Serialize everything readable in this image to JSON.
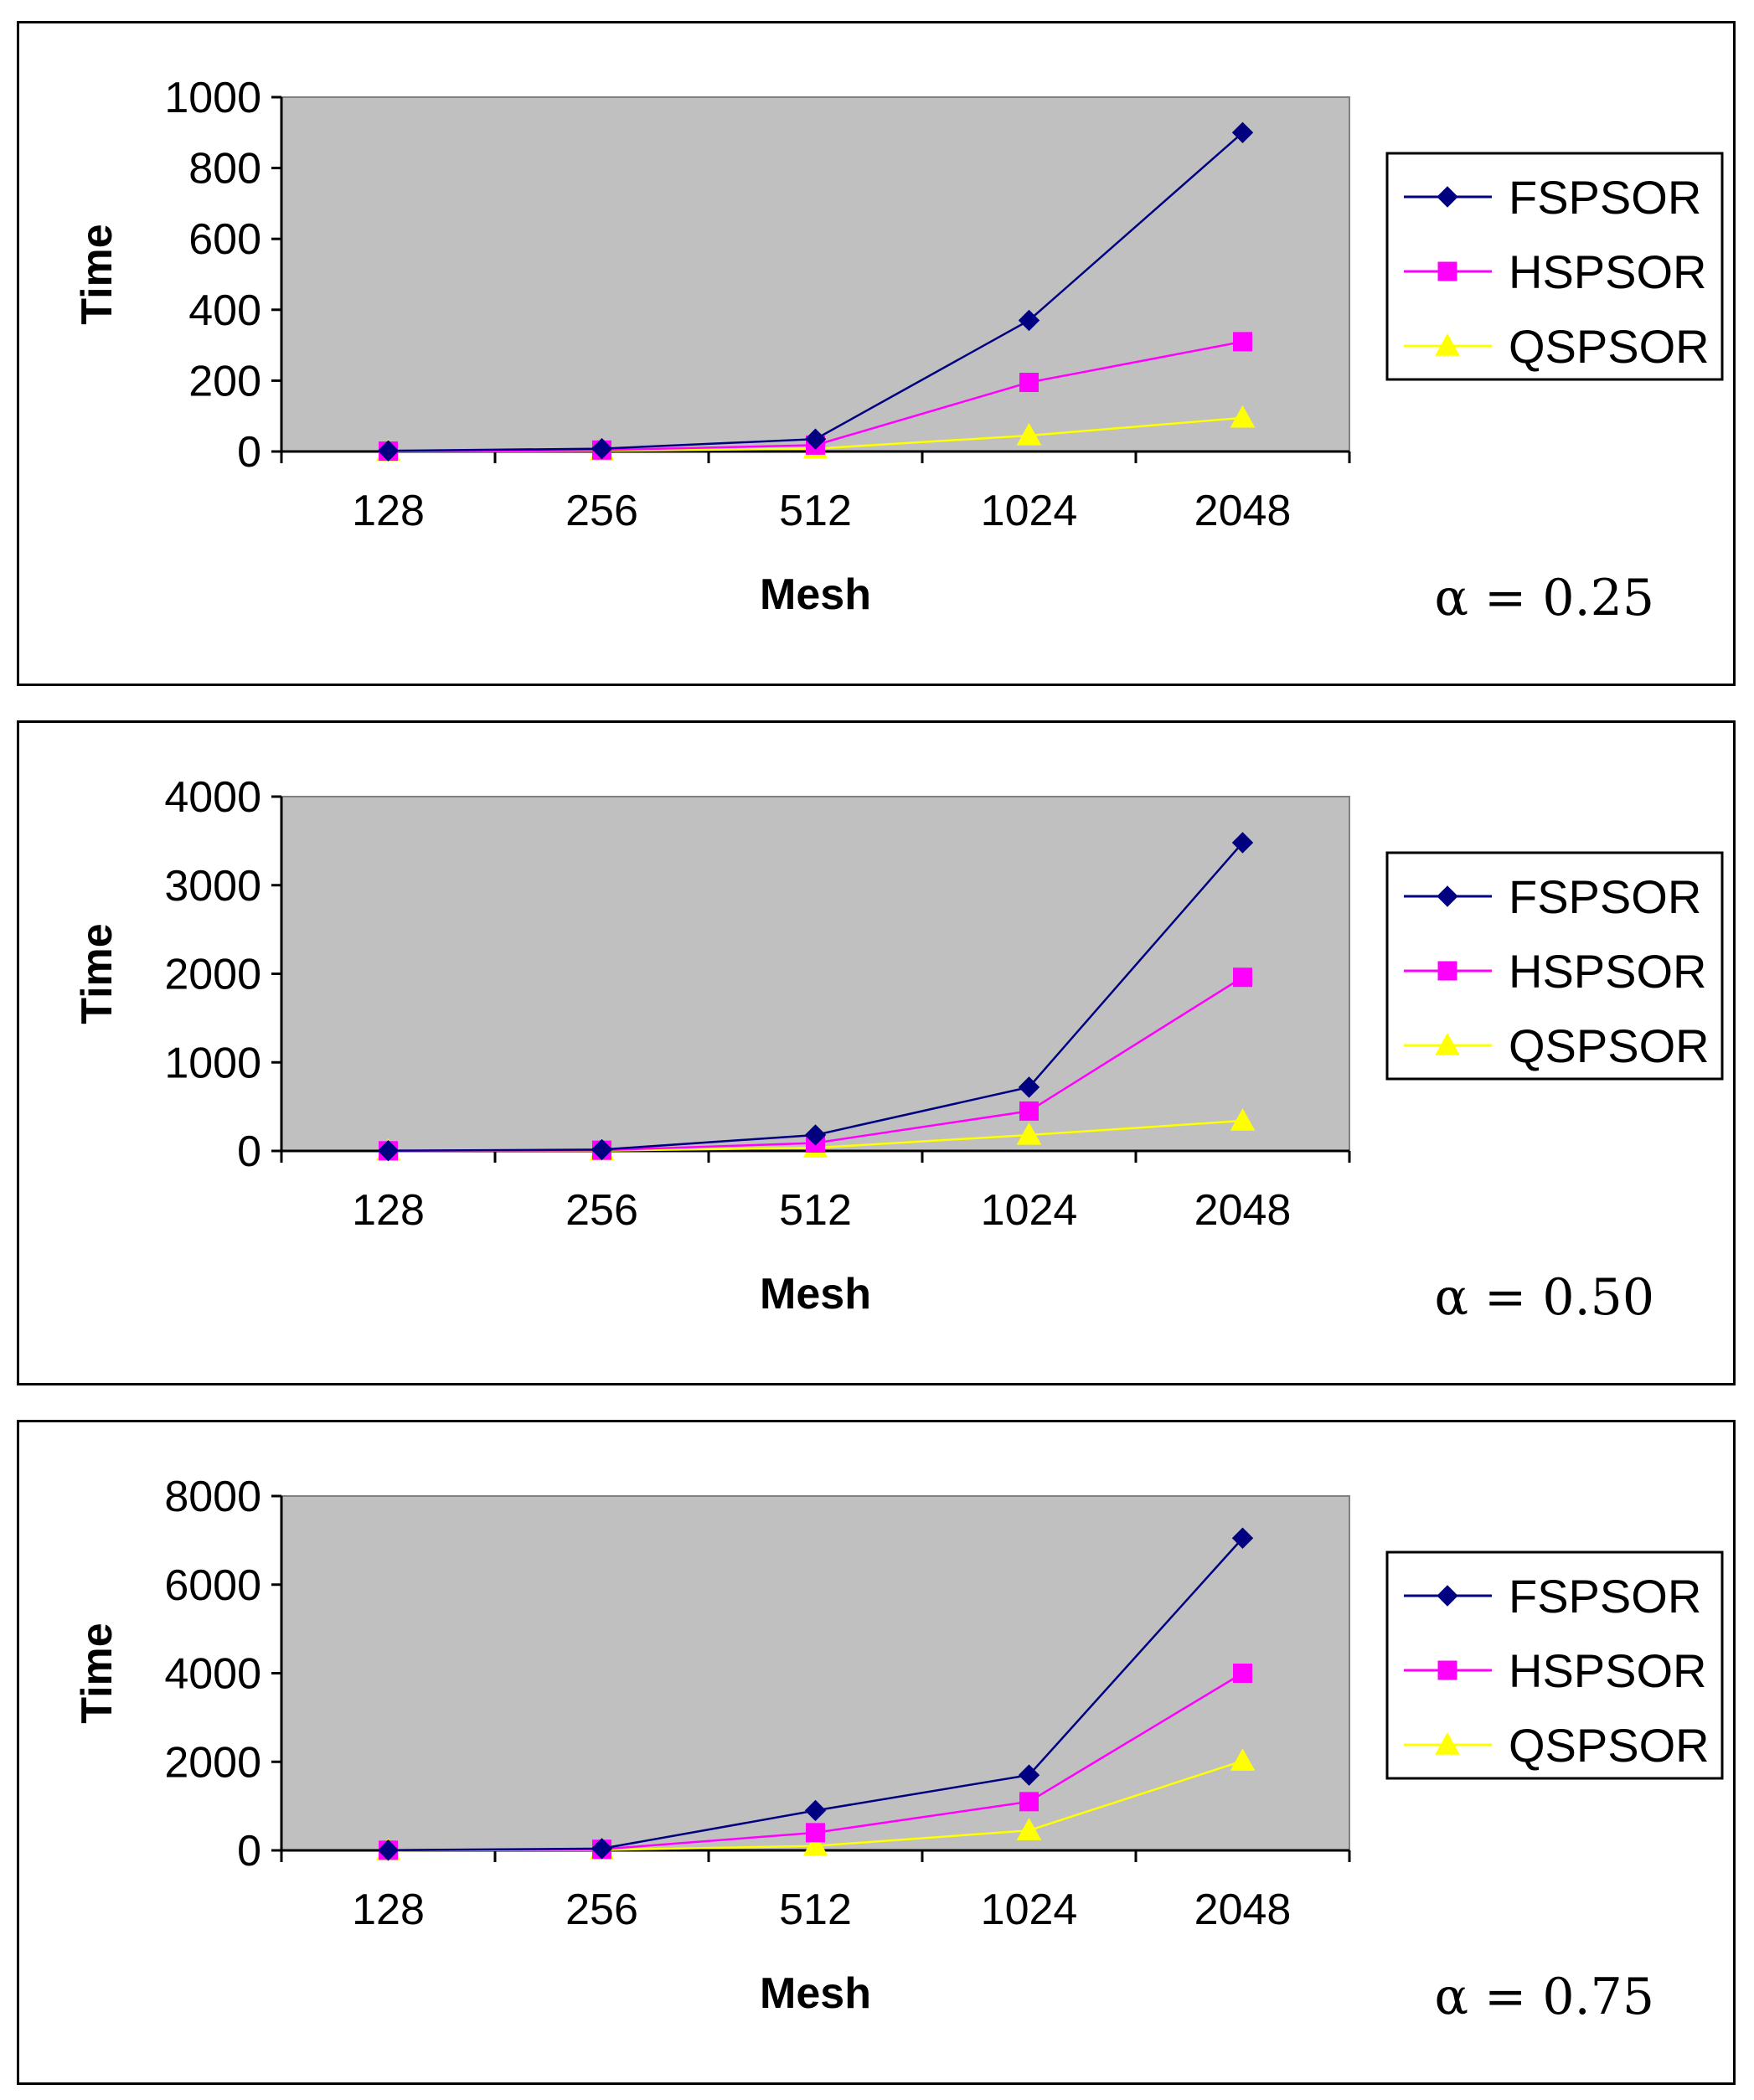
{
  "chart_data": [
    {
      "type": "line",
      "categories": [
        "128",
        "256",
        "512",
        "1024",
        "2048"
      ],
      "series": [
        {
          "name": "FSPSOR",
          "values": [
            2,
            8,
            35,
            370,
            900
          ],
          "color": "#000080",
          "marker": "diamond"
        },
        {
          "name": "HSPSOR",
          "values": [
            1,
            4,
            18,
            195,
            310
          ],
          "color": "#ff00ff",
          "marker": "square"
        },
        {
          "name": "QSPSOR",
          "values": [
            0.5,
            2,
            8,
            45,
            95
          ],
          "color": "#ffff00",
          "marker": "triangle"
        }
      ],
      "xlabel": "Mesh",
      "ylabel": "Time",
      "ylim": [
        0,
        1000
      ],
      "yticks": [
        "0",
        "200",
        "400",
        "600",
        "800",
        "1000"
      ],
      "annotation": "α = 0.25",
      "plot_background": "#c0c0c0"
    },
    {
      "type": "line",
      "categories": [
        "128",
        "256",
        "512",
        "1024",
        "2048"
      ],
      "series": [
        {
          "name": "FSPSOR",
          "values": [
            3,
            15,
            180,
            720,
            3480
          ],
          "color": "#000080",
          "marker": "diamond"
        },
        {
          "name": "HSPSOR",
          "values": [
            2,
            8,
            90,
            450,
            1960
          ],
          "color": "#ff00ff",
          "marker": "square"
        },
        {
          "name": "QSPSOR",
          "values": [
            1,
            4,
            35,
            180,
            340
          ],
          "color": "#ffff00",
          "marker": "triangle"
        }
      ],
      "xlabel": "Mesh",
      "ylabel": "Time",
      "ylim": [
        0,
        4000
      ],
      "yticks": [
        "0",
        "1000",
        "2000",
        "3000",
        "4000"
      ],
      "annotation": "α = 0.50",
      "plot_background": "#c0c0c0"
    },
    {
      "type": "line",
      "categories": [
        "128",
        "256",
        "512",
        "1024",
        "2048"
      ],
      "series": [
        {
          "name": "FSPSOR",
          "values": [
            5,
            40,
            900,
            1700,
            7050
          ],
          "color": "#000080",
          "marker": "diamond"
        },
        {
          "name": "HSPSOR",
          "values": [
            3,
            25,
            400,
            1100,
            4000
          ],
          "color": "#ff00ff",
          "marker": "square"
        },
        {
          "name": "QSPSOR",
          "values": [
            1,
            10,
            100,
            450,
            2020
          ],
          "color": "#ffff00",
          "marker": "triangle"
        }
      ],
      "xlabel": "Mesh",
      "ylabel": "Time",
      "ylim": [
        0,
        8000
      ],
      "yticks": [
        "0",
        "2000",
        "4000",
        "6000",
        "8000"
      ],
      "annotation": "α = 0.75",
      "plot_background": "#c0c0c0"
    }
  ]
}
